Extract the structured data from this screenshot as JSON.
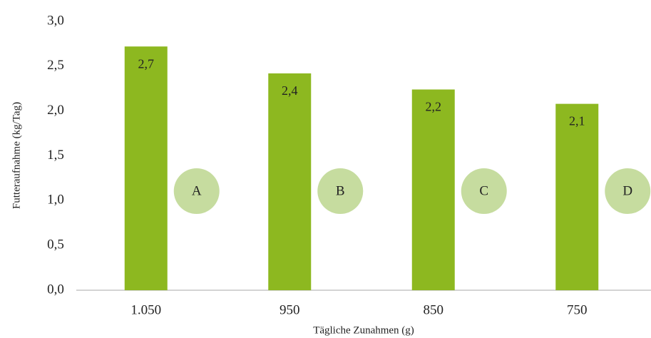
{
  "chart_data": {
    "type": "bar",
    "x_label": "Tägliche Zunahmen (g)",
    "y_label": "Futteraufnahme (kg/Tag)",
    "categories": [
      "1.050",
      "950",
      "850",
      "750"
    ],
    "values": [
      2.72,
      2.42,
      2.24,
      2.08
    ],
    "value_labels": [
      "2,7",
      "2,4",
      "2,2",
      "2,1"
    ],
    "annotations": [
      "A",
      "B",
      "C",
      "D"
    ],
    "color": "#8db820",
    "annotation_color": "#c6dc9f",
    "ylim": [
      0,
      3
    ],
    "yticks": [
      {
        "value": 0,
        "label": "0,0"
      },
      {
        "value": 0.5,
        "label": "0,5"
      },
      {
        "value": 1,
        "label": "1,0"
      },
      {
        "value": 1.5,
        "label": "1,5"
      },
      {
        "value": 2,
        "label": "2,0"
      },
      {
        "value": 2.5,
        "label": "2,5"
      },
      {
        "value": 3,
        "label": "3,0"
      }
    ],
    "grid": false
  }
}
